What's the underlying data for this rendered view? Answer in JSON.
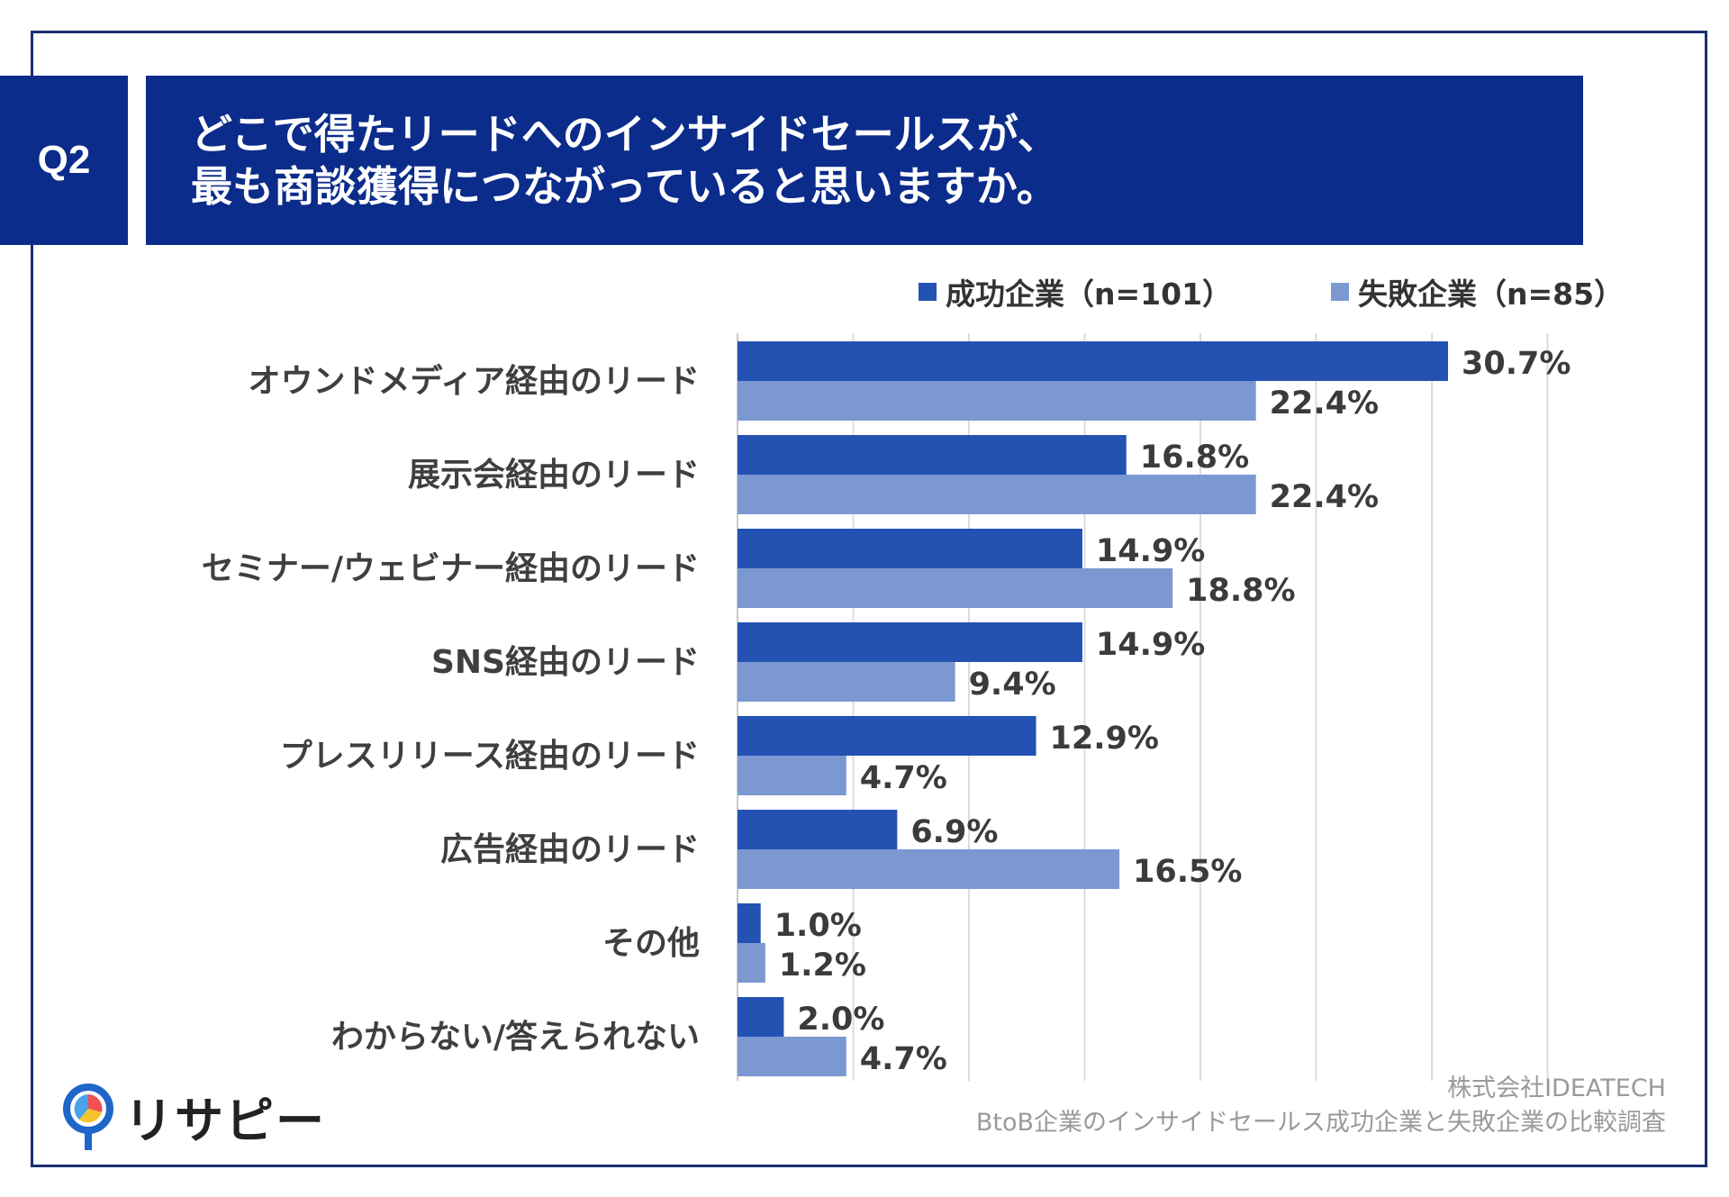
{
  "header": {
    "badge": "Q2",
    "title_line1": "どこで得たリードへのインサイドセールスが、",
    "title_line2": "最も商談獲得につながっていると思いますか。"
  },
  "chart_data": {
    "type": "bar",
    "orientation": "horizontal",
    "categories": [
      "オウンドメディア経由のリード",
      "展示会経由のリード",
      "セミナー/ウェビナー経由のリード",
      "SNS経由のリード",
      "プレスリリース経由のリード",
      "広告経由のリード",
      "その他",
      "わからない/答えられない"
    ],
    "series": [
      {
        "name": "成功企業（n=101）",
        "color": "#2452b3",
        "values": [
          30.7,
          16.8,
          14.9,
          14.9,
          12.9,
          6.9,
          1.0,
          2.0
        ]
      },
      {
        "name": "失敗企業（n=85）",
        "color": "#7b98d1",
        "values": [
          22.4,
          22.4,
          18.8,
          9.4,
          4.7,
          16.5,
          1.2,
          4.7
        ]
      }
    ],
    "value_format": "percent_1dp",
    "xlim": [
      0,
      35
    ],
    "x_gridlines": [
      0,
      5,
      10,
      15,
      20,
      25,
      30,
      35
    ],
    "legend": "top-right"
  },
  "branding": {
    "logo_text": "リサピー"
  },
  "source": {
    "line1": "株式会社IDEATECH",
    "line2": "BtoB企業のインサイドセールス成功企業と失敗企業の比較調査"
  }
}
